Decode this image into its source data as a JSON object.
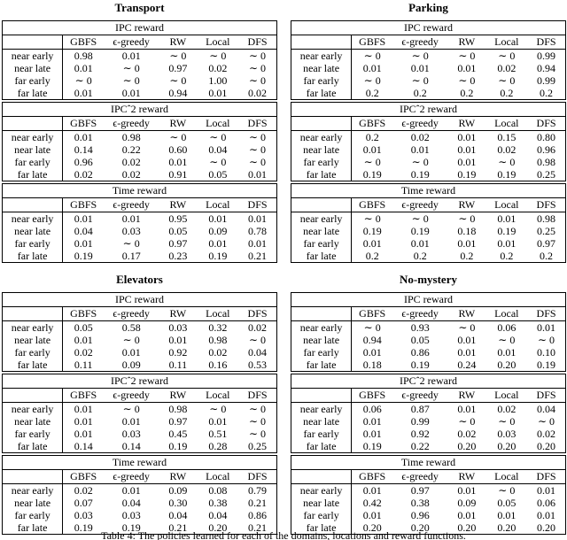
{
  "caption": "Table 4: The policies learned for each of the domains, locations and reward functions.",
  "columns": [
    "GBFS",
    "ϵ-greedy",
    "RW",
    "Local",
    "DFS"
  ],
  "row_labels": [
    "near early",
    "near late",
    "far early",
    "far late"
  ],
  "colors": {
    "text": "#000000",
    "background": "#ffffff",
    "border": "#000000"
  },
  "domains": [
    {
      "title": "Transport",
      "sections": [
        {
          "label": "IPC reward",
          "rows": [
            [
              "0.98",
              "0.01",
              "∼ 0",
              "∼ 0",
              "∼ 0"
            ],
            [
              "0.01",
              "∼ 0",
              "0.97",
              "0.02",
              "∼ 0"
            ],
            [
              "∼ 0",
              "∼ 0",
              "∼ 0",
              "1.00",
              "∼ 0"
            ],
            [
              "0.01",
              "0.01",
              "0.94",
              "0.01",
              "0.02"
            ]
          ]
        },
        {
          "label": "IPCˆ2 reward",
          "rows": [
            [
              "0.01",
              "0.98",
              "∼ 0",
              "∼ 0",
              "∼ 0"
            ],
            [
              "0.14",
              "0.22",
              "0.60",
              "0.04",
              "∼ 0"
            ],
            [
              "0.96",
              "0.02",
              "0.01",
              "∼ 0",
              "∼ 0"
            ],
            [
              "0.02",
              "0.02",
              "0.91",
              "0.05",
              "0.01"
            ]
          ]
        },
        {
          "label": "Time reward",
          "rows": [
            [
              "0.01",
              "0.01",
              "0.95",
              "0.01",
              "0.01"
            ],
            [
              "0.04",
              "0.03",
              "0.05",
              "0.09",
              "0.78"
            ],
            [
              "0.01",
              "∼ 0",
              "0.97",
              "0.01",
              "0.01"
            ],
            [
              "0.19",
              "0.17",
              "0.23",
              "0.19",
              "0.21"
            ]
          ]
        }
      ]
    },
    {
      "title": "Parking",
      "sections": [
        {
          "label": "IPC reward",
          "rows": [
            [
              "∼ 0",
              "∼ 0",
              "∼ 0",
              "∼ 0",
              "0.99"
            ],
            [
              "0.01",
              "0.01",
              "0.01",
              "0.02",
              "0.94"
            ],
            [
              "∼ 0",
              "∼ 0",
              "∼ 0",
              "∼ 0",
              "0.99"
            ],
            [
              "0.2",
              "0.2",
              "0.2",
              "0.2",
              "0.2"
            ]
          ]
        },
        {
          "label": "IPCˆ2 reward",
          "rows": [
            [
              "0.2",
              "0.02",
              "0.01",
              "0.15",
              "0.80"
            ],
            [
              "0.01",
              "0.01",
              "0.01",
              "0.02",
              "0.96"
            ],
            [
              "∼ 0",
              "∼ 0",
              "0.01",
              "∼ 0",
              "0.98"
            ],
            [
              "0.19",
              "0.19",
              "0.19",
              "0.19",
              "0.25"
            ]
          ]
        },
        {
          "label": "Time reward",
          "rows": [
            [
              "∼ 0",
              "∼ 0",
              "∼ 0",
              "0.01",
              "0.98"
            ],
            [
              "0.19",
              "0.19",
              "0.18",
              "0.19",
              "0.25"
            ],
            [
              "0.01",
              "0.01",
              "0.01",
              "0.01",
              "0.97"
            ],
            [
              "0.2",
              "0.2",
              "0.2",
              "0.2",
              "0.2"
            ]
          ]
        }
      ]
    },
    {
      "title": "Elevators",
      "sections": [
        {
          "label": "IPC reward",
          "rows": [
            [
              "0.05",
              "0.58",
              "0.03",
              "0.32",
              "0.02"
            ],
            [
              "0.01",
              "∼ 0",
              "0.01",
              "0.98",
              "∼ 0"
            ],
            [
              "0.02",
              "0.01",
              "0.92",
              "0.02",
              "0.04"
            ],
            [
              "0.11",
              "0.09",
              "0.11",
              "0.16",
              "0.53"
            ]
          ]
        },
        {
          "label": "IPCˆ2 reward",
          "rows": [
            [
              "0.01",
              "∼ 0",
              "0.98",
              "∼ 0",
              "∼ 0"
            ],
            [
              "0.01",
              "0.01",
              "0.97",
              "0.01",
              "∼ 0"
            ],
            [
              "0.01",
              "0.03",
              "0.45",
              "0.51",
              "∼ 0"
            ],
            [
              "0.14",
              "0.14",
              "0.19",
              "0.28",
              "0.25"
            ]
          ]
        },
        {
          "label": "Time reward",
          "rows": [
            [
              "0.02",
              "0.01",
              "0.09",
              "0.08",
              "0.79"
            ],
            [
              "0.07",
              "0.04",
              "0.30",
              "0.38",
              "0.21"
            ],
            [
              "0.03",
              "0.03",
              "0.04",
              "0.04",
              "0.86"
            ],
            [
              "0.19",
              "0.19",
              "0.21",
              "0.20",
              "0.21"
            ]
          ]
        }
      ]
    },
    {
      "title": "No-mystery",
      "sections": [
        {
          "label": "IPC reward",
          "rows": [
            [
              "∼ 0",
              "0.93",
              "∼ 0",
              "0.06",
              "0.01"
            ],
            [
              "0.94",
              "0.05",
              "0.01",
              "∼ 0",
              "∼ 0"
            ],
            [
              "0.01",
              "0.86",
              "0.01",
              "0.01",
              "0.10"
            ],
            [
              "0.18",
              "0.19",
              "0.24",
              "0.20",
              "0.19"
            ]
          ]
        },
        {
          "label": "IPCˆ2 reward",
          "rows": [
            [
              "0.06",
              "0.87",
              "0.01",
              "0.02",
              "0.04"
            ],
            [
              "0.01",
              "0.99",
              "∼ 0",
              "∼ 0",
              "∼ 0"
            ],
            [
              "0.01",
              "0.92",
              "0.02",
              "0.03",
              "0.02"
            ],
            [
              "0.19",
              "0.22",
              "0.20",
              "0.20",
              "0.20"
            ]
          ]
        },
        {
          "label": "Time reward",
          "rows": [
            [
              "0.01",
              "0.97",
              "0.01",
              "∼ 0",
              "0.01"
            ],
            [
              "0.42",
              "0.38",
              "0.09",
              "0.05",
              "0.06"
            ],
            [
              "0.01",
              "0.96",
              "0.01",
              "0.01",
              "0.01"
            ],
            [
              "0.20",
              "0.20",
              "0.20",
              "0.20",
              "0.20"
            ]
          ]
        }
      ]
    }
  ]
}
